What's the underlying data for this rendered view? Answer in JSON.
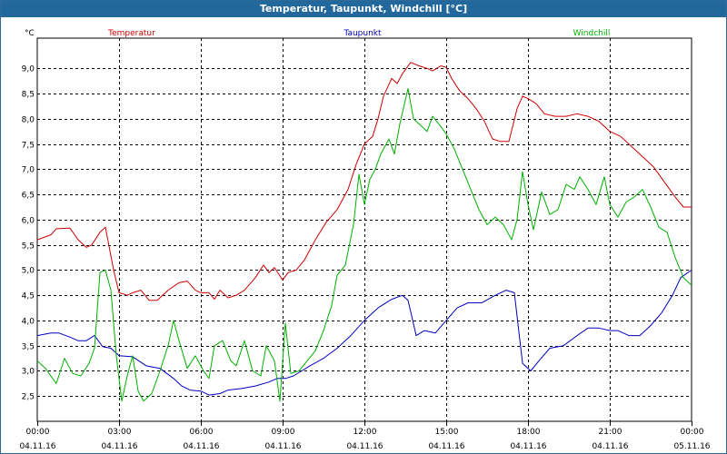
{
  "window": {
    "title": "Temperatur, Taupunkt, Windchill [°C]"
  },
  "chart_data": {
    "type": "line",
    "title": "Temperatur, Taupunkt, Windchill [°C]",
    "ylabel": "°C",
    "xlabel": "",
    "ylim": [
      2.0,
      9.6
    ],
    "xlim": [
      0,
      24
    ],
    "grid": true,
    "y_ticks": [
      2.5,
      3.0,
      3.5,
      4.0,
      4.5,
      5.0,
      5.5,
      6.0,
      6.5,
      7.0,
      7.5,
      8.0,
      8.5,
      9.0
    ],
    "y_tick_labels": [
      "2,5",
      "3,0",
      "3,5",
      "4,0",
      "4,5",
      "5,0",
      "5,5",
      "6,0",
      "6,5",
      "7,0",
      "7,5",
      "8,0",
      "8,5",
      "9,0"
    ],
    "x_ticks": [
      0,
      3,
      6,
      9,
      12,
      15,
      18,
      21,
      24
    ],
    "x_tick_times": [
      "00:00",
      "03:00",
      "06:00",
      "09:00",
      "12:00",
      "15:00",
      "18:00",
      "21:00",
      "00:00"
    ],
    "x_tick_dates": [
      "04.11.16",
      "04.11.16",
      "04.11.16",
      "04.11.16",
      "04.11.16",
      "04.11.16",
      "04.11.16",
      "04.11.16",
      "05.11.16"
    ],
    "series": [
      {
        "name": "Temperatur",
        "color": "#d00000",
        "points": [
          [
            0,
            5.6
          ],
          [
            0.5,
            5.7
          ],
          [
            0.7,
            5.82
          ],
          [
            1.2,
            5.83
          ],
          [
            1.5,
            5.6
          ],
          [
            1.8,
            5.45
          ],
          [
            2.0,
            5.5
          ],
          [
            2.3,
            5.75
          ],
          [
            2.5,
            5.85
          ],
          [
            2.8,
            5.0
          ],
          [
            3.0,
            4.55
          ],
          [
            3.3,
            4.5
          ],
          [
            3.5,
            4.55
          ],
          [
            3.8,
            4.6
          ],
          [
            4.1,
            4.4
          ],
          [
            4.4,
            4.4
          ],
          [
            4.8,
            4.6
          ],
          [
            5.2,
            4.75
          ],
          [
            5.5,
            4.78
          ],
          [
            5.8,
            4.6
          ],
          [
            6.0,
            4.55
          ],
          [
            6.3,
            4.55
          ],
          [
            6.5,
            4.42
          ],
          [
            6.7,
            4.6
          ],
          [
            7.0,
            4.45
          ],
          [
            7.3,
            4.5
          ],
          [
            7.6,
            4.6
          ],
          [
            8.0,
            4.85
          ],
          [
            8.3,
            5.1
          ],
          [
            8.5,
            4.95
          ],
          [
            8.7,
            5.05
          ],
          [
            9.0,
            4.8
          ],
          [
            9.2,
            4.95
          ],
          [
            9.5,
            5.0
          ],
          [
            9.8,
            5.2
          ],
          [
            10.2,
            5.6
          ],
          [
            10.6,
            5.95
          ],
          [
            11.0,
            6.2
          ],
          [
            11.4,
            6.6
          ],
          [
            11.7,
            7.1
          ],
          [
            12.0,
            7.5
          ],
          [
            12.3,
            7.65
          ],
          [
            12.5,
            8.0
          ],
          [
            12.7,
            8.45
          ],
          [
            13.0,
            8.8
          ],
          [
            13.2,
            8.7
          ],
          [
            13.4,
            8.9
          ],
          [
            13.7,
            9.12
          ],
          [
            14.0,
            9.05
          ],
          [
            14.3,
            9.0
          ],
          [
            14.5,
            8.95
          ],
          [
            14.8,
            9.05
          ],
          [
            15.0,
            9.02
          ],
          [
            15.2,
            8.8
          ],
          [
            15.5,
            8.55
          ],
          [
            15.8,
            8.4
          ],
          [
            16.1,
            8.2
          ],
          [
            16.4,
            7.95
          ],
          [
            16.7,
            7.6
          ],
          [
            17.0,
            7.55
          ],
          [
            17.3,
            7.55
          ],
          [
            17.6,
            8.2
          ],
          [
            17.8,
            8.45
          ],
          [
            18.0,
            8.4
          ],
          [
            18.3,
            8.3
          ],
          [
            18.6,
            8.1
          ],
          [
            19.0,
            8.05
          ],
          [
            19.4,
            8.05
          ],
          [
            19.8,
            8.1
          ],
          [
            20.2,
            8.05
          ],
          [
            20.6,
            7.95
          ],
          [
            21.0,
            7.75
          ],
          [
            21.4,
            7.65
          ],
          [
            21.8,
            7.45
          ],
          [
            22.2,
            7.25
          ],
          [
            22.6,
            7.05
          ],
          [
            23.0,
            6.75
          ],
          [
            23.4,
            6.45
          ],
          [
            23.7,
            6.25
          ],
          [
            24.0,
            6.25
          ]
        ]
      },
      {
        "name": "Taupunkt",
        "color": "#0000c0",
        "points": [
          [
            0,
            3.7
          ],
          [
            0.5,
            3.75
          ],
          [
            0.8,
            3.75
          ],
          [
            1.2,
            3.67
          ],
          [
            1.5,
            3.6
          ],
          [
            1.8,
            3.6
          ],
          [
            2.1,
            3.7
          ],
          [
            2.4,
            3.48
          ],
          [
            2.7,
            3.45
          ],
          [
            3.0,
            3.3
          ],
          [
            3.5,
            3.28
          ],
          [
            4.0,
            3.1
          ],
          [
            4.5,
            3.05
          ],
          [
            5.0,
            2.85
          ],
          [
            5.3,
            2.7
          ],
          [
            5.6,
            2.62
          ],
          [
            6.0,
            2.6
          ],
          [
            6.3,
            2.52
          ],
          [
            6.7,
            2.55
          ],
          [
            7.0,
            2.62
          ],
          [
            7.5,
            2.65
          ],
          [
            8.0,
            2.7
          ],
          [
            8.5,
            2.78
          ],
          [
            8.8,
            2.85
          ],
          [
            9.1,
            2.85
          ],
          [
            9.4,
            2.9
          ],
          [
            9.7,
            3.0
          ],
          [
            10.0,
            3.1
          ],
          [
            10.5,
            3.25
          ],
          [
            11.0,
            3.45
          ],
          [
            11.5,
            3.7
          ],
          [
            12.0,
            4.0
          ],
          [
            12.5,
            4.25
          ],
          [
            13.0,
            4.42
          ],
          [
            13.4,
            4.5
          ],
          [
            13.6,
            4.4
          ],
          [
            13.9,
            3.7
          ],
          [
            14.2,
            3.8
          ],
          [
            14.6,
            3.75
          ],
          [
            15.0,
            4.0
          ],
          [
            15.4,
            4.25
          ],
          [
            15.8,
            4.35
          ],
          [
            16.3,
            4.35
          ],
          [
            16.8,
            4.5
          ],
          [
            17.2,
            4.6
          ],
          [
            17.5,
            4.55
          ],
          [
            17.8,
            3.15
          ],
          [
            18.1,
            3.0
          ],
          [
            18.4,
            3.2
          ],
          [
            18.8,
            3.45
          ],
          [
            19.3,
            3.5
          ],
          [
            19.8,
            3.7
          ],
          [
            20.2,
            3.85
          ],
          [
            20.6,
            3.85
          ],
          [
            21.0,
            3.8
          ],
          [
            21.3,
            3.8
          ],
          [
            21.7,
            3.7
          ],
          [
            22.1,
            3.7
          ],
          [
            22.5,
            3.9
          ],
          [
            22.9,
            4.15
          ],
          [
            23.3,
            4.5
          ],
          [
            23.6,
            4.85
          ],
          [
            24.0,
            5.0
          ]
        ]
      },
      {
        "name": "Windchill",
        "color": "#00b000",
        "points": [
          [
            0,
            3.2
          ],
          [
            0.3,
            3.05
          ],
          [
            0.7,
            2.75
          ],
          [
            1.0,
            3.25
          ],
          [
            1.3,
            2.95
          ],
          [
            1.6,
            2.9
          ],
          [
            1.9,
            3.15
          ],
          [
            2.1,
            3.45
          ],
          [
            2.3,
            4.95
          ],
          [
            2.5,
            5.0
          ],
          [
            2.7,
            4.6
          ],
          [
            2.9,
            3.3
          ],
          [
            3.1,
            2.4
          ],
          [
            3.3,
            2.9
          ],
          [
            3.5,
            3.3
          ],
          [
            3.7,
            2.6
          ],
          [
            3.9,
            2.4
          ],
          [
            4.2,
            2.55
          ],
          [
            4.5,
            3.0
          ],
          [
            4.8,
            3.5
          ],
          [
            5.0,
            4.0
          ],
          [
            5.2,
            3.6
          ],
          [
            5.5,
            3.05
          ],
          [
            5.8,
            3.3
          ],
          [
            6.1,
            3.0
          ],
          [
            6.3,
            2.85
          ],
          [
            6.5,
            3.5
          ],
          [
            6.8,
            3.6
          ],
          [
            7.1,
            3.2
          ],
          [
            7.3,
            3.1
          ],
          [
            7.6,
            3.6
          ],
          [
            7.9,
            3.0
          ],
          [
            8.2,
            2.9
          ],
          [
            8.4,
            3.5
          ],
          [
            8.7,
            3.2
          ],
          [
            8.9,
            2.4
          ],
          [
            9.1,
            3.95
          ],
          [
            9.3,
            2.95
          ],
          [
            9.6,
            3.0
          ],
          [
            9.9,
            3.2
          ],
          [
            10.2,
            3.4
          ],
          [
            10.5,
            3.8
          ],
          [
            10.8,
            4.3
          ],
          [
            11.0,
            4.9
          ],
          [
            11.3,
            5.1
          ],
          [
            11.6,
            5.9
          ],
          [
            11.8,
            6.9
          ],
          [
            12.0,
            6.3
          ],
          [
            12.2,
            6.8
          ],
          [
            12.4,
            7.0
          ],
          [
            12.6,
            7.3
          ],
          [
            12.9,
            7.6
          ],
          [
            13.1,
            7.3
          ],
          [
            13.3,
            7.9
          ],
          [
            13.6,
            8.6
          ],
          [
            13.8,
            8.0
          ],
          [
            14.0,
            7.9
          ],
          [
            14.3,
            7.75
          ],
          [
            14.5,
            8.05
          ],
          [
            14.8,
            7.85
          ],
          [
            15.0,
            7.7
          ],
          [
            15.3,
            7.4
          ],
          [
            15.6,
            7.0
          ],
          [
            15.9,
            6.6
          ],
          [
            16.2,
            6.2
          ],
          [
            16.5,
            5.9
          ],
          [
            16.8,
            6.05
          ],
          [
            17.1,
            5.9
          ],
          [
            17.4,
            5.6
          ],
          [
            17.6,
            6.0
          ],
          [
            17.8,
            6.95
          ],
          [
            18.0,
            6.3
          ],
          [
            18.2,
            5.8
          ],
          [
            18.5,
            6.55
          ],
          [
            18.8,
            6.1
          ],
          [
            19.1,
            6.2
          ],
          [
            19.4,
            6.7
          ],
          [
            19.7,
            6.6
          ],
          [
            19.9,
            6.85
          ],
          [
            20.2,
            6.6
          ],
          [
            20.5,
            6.3
          ],
          [
            20.8,
            6.85
          ],
          [
            21.0,
            6.3
          ],
          [
            21.3,
            6.05
          ],
          [
            21.6,
            6.35
          ],
          [
            21.9,
            6.45
          ],
          [
            22.2,
            6.6
          ],
          [
            22.5,
            6.25
          ],
          [
            22.8,
            5.85
          ],
          [
            23.1,
            5.75
          ],
          [
            23.4,
            5.25
          ],
          [
            23.7,
            4.85
          ],
          [
            24.0,
            4.7
          ]
        ]
      }
    ]
  }
}
